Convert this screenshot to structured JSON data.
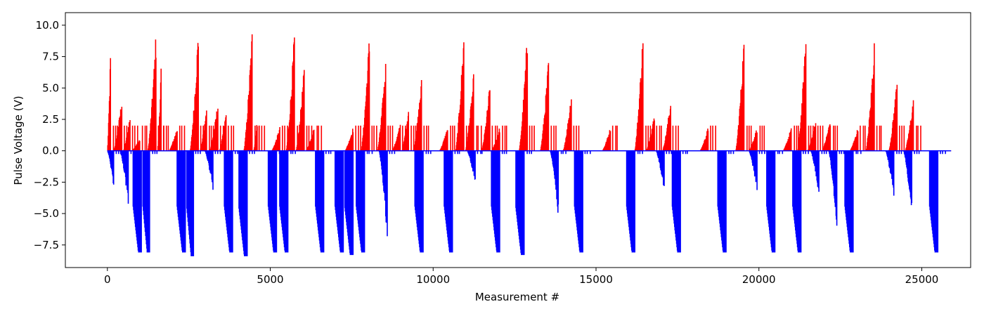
{
  "chart_data": {
    "type": "line",
    "title": "",
    "xlabel": "Measurement #",
    "ylabel": "Pulse Voltage (V)",
    "xlim": [
      -1290,
      26500
    ],
    "ylim": [
      -9.3,
      11.0
    ],
    "xticks": [
      0,
      5000,
      10000,
      15000,
      20000,
      25000
    ],
    "xtick_labels": [
      "0",
      "5000",
      "10000",
      "15000",
      "20000",
      "25000"
    ],
    "yticks": [
      -7.5,
      -5.0,
      -2.5,
      0.0,
      2.5,
      5.0,
      7.5,
      10.0
    ],
    "ytick_labels": [
      "−7.5",
      "−5.0",
      "−2.5",
      "0.0",
      "2.5",
      "5.0",
      "7.5",
      "10.0"
    ],
    "grid": false,
    "x_range": [
      0,
      25900
    ],
    "series": [
      {
        "color": "#ff0000",
        "polarity": "positive",
        "description_values": "positive pulse envelope peaks",
        "peaks": [
          {
            "x": 100,
            "y": 8.4
          },
          {
            "x": 450,
            "y": 4.4
          },
          {
            "x": 700,
            "y": 3.0
          },
          {
            "x": 1000,
            "y": 1.0
          },
          {
            "x": 1500,
            "y": 10.0
          },
          {
            "x": 1650,
            "y": 7.0
          },
          {
            "x": 2150,
            "y": 2.0
          },
          {
            "x": 2800,
            "y": 10.3
          },
          {
            "x": 3050,
            "y": 3.6
          },
          {
            "x": 3400,
            "y": 4.1
          },
          {
            "x": 3650,
            "y": 3.3
          },
          {
            "x": 4450,
            "y": 10.1
          },
          {
            "x": 4600,
            "y": 2.5
          },
          {
            "x": 5300,
            "y": 2.0
          },
          {
            "x": 5750,
            "y": 10.1
          },
          {
            "x": 6050,
            "y": 7.1
          },
          {
            "x": 6350,
            "y": 2.0
          },
          {
            "x": 7550,
            "y": 2.0
          },
          {
            "x": 8050,
            "y": 9.8
          },
          {
            "x": 8550,
            "y": 7.5
          },
          {
            "x": 9000,
            "y": 2.3
          },
          {
            "x": 9250,
            "y": 3.7
          },
          {
            "x": 9650,
            "y": 6.0
          },
          {
            "x": 10450,
            "y": 2.0
          },
          {
            "x": 10950,
            "y": 10.0
          },
          {
            "x": 11250,
            "y": 6.4
          },
          {
            "x": 11750,
            "y": 5.7
          },
          {
            "x": 12050,
            "y": 2.0
          },
          {
            "x": 12900,
            "y": 10.0
          },
          {
            "x": 13550,
            "y": 7.8
          },
          {
            "x": 14250,
            "y": 4.9
          },
          {
            "x": 15450,
            "y": 2.0
          },
          {
            "x": 16450,
            "y": 10.0
          },
          {
            "x": 16800,
            "y": 3.1
          },
          {
            "x": 17300,
            "y": 4.3
          },
          {
            "x": 18450,
            "y": 2.0
          },
          {
            "x": 19550,
            "y": 9.6
          },
          {
            "x": 19950,
            "y": 2.0
          },
          {
            "x": 21000,
            "y": 2.0
          },
          {
            "x": 21450,
            "y": 9.7
          },
          {
            "x": 21750,
            "y": 2.5
          },
          {
            "x": 22200,
            "y": 2.7
          },
          {
            "x": 23050,
            "y": 2.0
          },
          {
            "x": 23550,
            "y": 9.3
          },
          {
            "x": 24250,
            "y": 6.3
          },
          {
            "x": 24750,
            "y": 4.5
          }
        ]
      },
      {
        "color": "#0000ff",
        "polarity": "negative",
        "troughs": [
          {
            "x": 200,
            "y": -3.0
          },
          {
            "x": 650,
            "y": -4.5
          },
          {
            "x": 1050,
            "y": -8.1
          },
          {
            "x": 1300,
            "y": -8.1
          },
          {
            "x": 2400,
            "y": -8.1
          },
          {
            "x": 2650,
            "y": -8.4
          },
          {
            "x": 3250,
            "y": -3.3
          },
          {
            "x": 3850,
            "y": -8.1
          },
          {
            "x": 4300,
            "y": -8.4
          },
          {
            "x": 5200,
            "y": -8.1
          },
          {
            "x": 5550,
            "y": -8.1
          },
          {
            "x": 6650,
            "y": -8.1
          },
          {
            "x": 7250,
            "y": -8.1
          },
          {
            "x": 7550,
            "y": -8.3
          },
          {
            "x": 7900,
            "y": -8.1
          },
          {
            "x": 8600,
            "y": -7.4
          },
          {
            "x": 9700,
            "y": -8.1
          },
          {
            "x": 10600,
            "y": -8.1
          },
          {
            "x": 11300,
            "y": -2.8
          },
          {
            "x": 12050,
            "y": -8.1
          },
          {
            "x": 12800,
            "y": -8.3
          },
          {
            "x": 13850,
            "y": -5.5
          },
          {
            "x": 14600,
            "y": -8.1
          },
          {
            "x": 16200,
            "y": -8.1
          },
          {
            "x": 17100,
            "y": -3.3
          },
          {
            "x": 17600,
            "y": -8.1
          },
          {
            "x": 19000,
            "y": -8.1
          },
          {
            "x": 19950,
            "y": -3.3
          },
          {
            "x": 20500,
            "y": -8.1
          },
          {
            "x": 21300,
            "y": -8.1
          },
          {
            "x": 21850,
            "y": -3.8
          },
          {
            "x": 22400,
            "y": -6.5
          },
          {
            "x": 22900,
            "y": -8.1
          },
          {
            "x": 24150,
            "y": -4.0
          },
          {
            "x": 24700,
            "y": -5.3
          },
          {
            "x": 25500,
            "y": -8.1
          }
        ]
      }
    ]
  }
}
